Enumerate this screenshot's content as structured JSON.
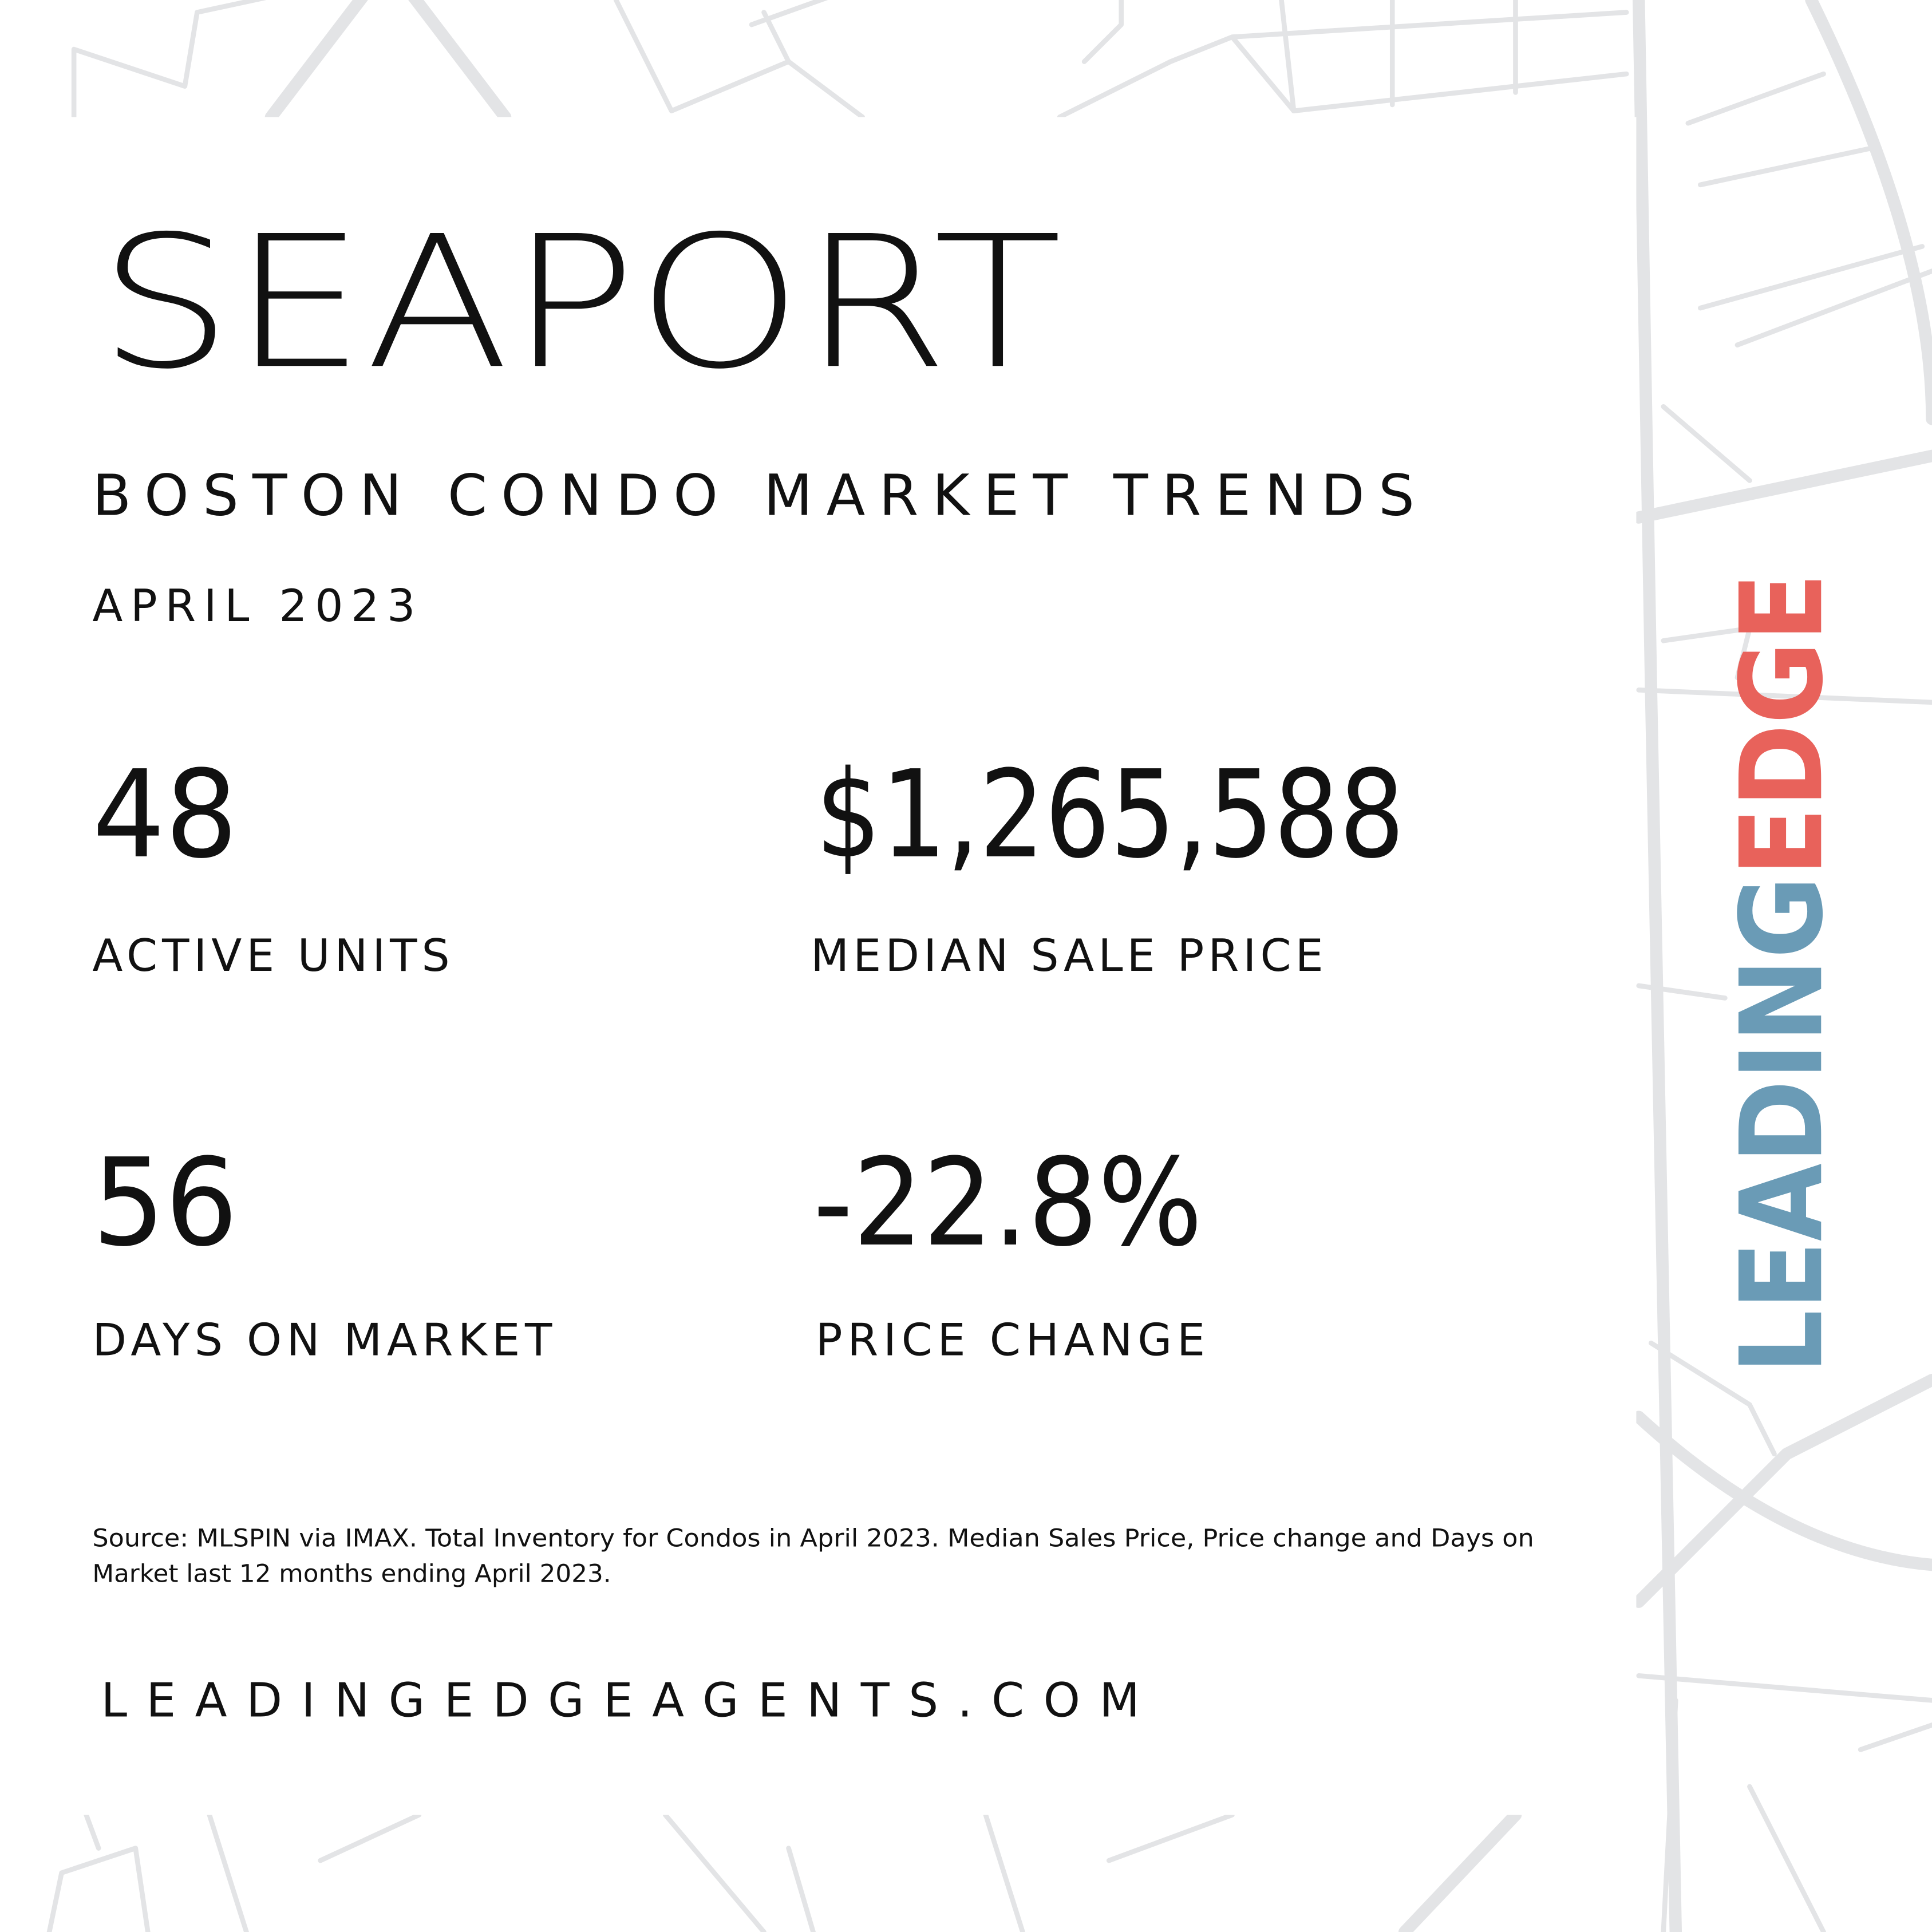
{
  "header": {
    "title": "SEAPORT",
    "subtitle": "BOSTON CONDO MARKET TRENDS",
    "date": "APRIL 2023"
  },
  "stats": [
    {
      "value": "48",
      "label": "ACTIVE UNITS"
    },
    {
      "value": "$1,265,588",
      "label": "MEDIAN SALE PRICE"
    },
    {
      "value": "56",
      "label": "DAYS ON MARKET"
    },
    {
      "value": "-22.8%",
      "label": "PRICE CHANGE"
    }
  ],
  "source": [
    "Source: MLSPIN via IMAX. Total Inventory for Condos in April 2023. Median Sales Price, Price change and Days on",
    "Market last 12 months ending April 2023."
  ],
  "website": "LEADINGEDGEAGENTS.COM",
  "logo": {
    "part1": "LEADING",
    "part2": "EDGE"
  }
}
